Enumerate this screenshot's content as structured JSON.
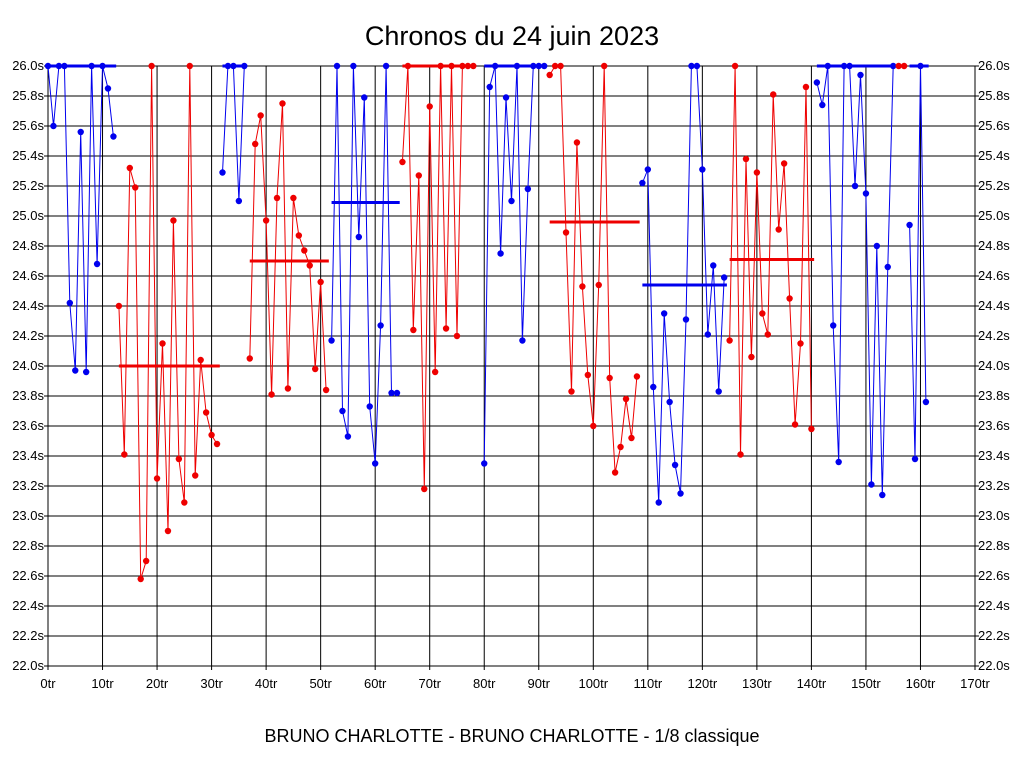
{
  "chart_data": {
    "type": "line",
    "title": "Chronos du 24 juin 2023",
    "subtitle": "BRUNO CHARLOTTE - BRUNO CHARLOTTE - 1/8 classique",
    "xlim": [
      0,
      170
    ],
    "ylim": [
      22.0,
      26.0
    ],
    "x_ticks": [
      0,
      10,
      20,
      30,
      40,
      50,
      60,
      70,
      80,
      90,
      100,
      110,
      120,
      130,
      140,
      150,
      160,
      170
    ],
    "x_tick_labels": [
      "0tr",
      "10tr",
      "20tr",
      "30tr",
      "40tr",
      "50tr",
      "60tr",
      "70tr",
      "80tr",
      "90tr",
      "100tr",
      "110tr",
      "120tr",
      "130tr",
      "140tr",
      "150tr",
      "160tr",
      "170tr"
    ],
    "y_ticks": [
      22.0,
      22.2,
      22.4,
      22.6,
      22.8,
      23.0,
      23.2,
      23.4,
      23.6,
      23.8,
      24.0,
      24.2,
      24.4,
      24.6,
      24.8,
      25.0,
      25.2,
      25.4,
      25.6,
      25.8,
      26.0
    ],
    "y_tick_labels": [
      "22.0s",
      "22.2s",
      "22.4s",
      "22.6s",
      "22.8s",
      "23.0s",
      "23.2s",
      "23.4s",
      "23.6s",
      "23.8s",
      "24.0s",
      "24.2s",
      "24.4s",
      "24.6s",
      "24.8s",
      "25.0s",
      "25.2s",
      "25.4s",
      "25.6s",
      "25.8s",
      "26.0s"
    ],
    "grid": true,
    "colors": {
      "blue": "#0000ee",
      "red": "#ee0000"
    },
    "segments": [
      {
        "color": "blue",
        "points": [
          [
            0,
            26.0
          ],
          [
            1,
            25.6
          ],
          [
            2,
            26.0
          ],
          [
            3,
            26.0
          ],
          [
            4,
            24.42
          ],
          [
            5,
            23.97
          ],
          [
            6,
            25.56
          ],
          [
            7,
            23.96
          ],
          [
            8,
            26.0
          ],
          [
            9,
            24.68
          ],
          [
            10,
            26.0
          ],
          [
            11,
            25.85
          ],
          [
            12,
            25.53
          ]
        ],
        "avg": 26.0,
        "avg_range": [
          0,
          12
        ]
      },
      {
        "color": "red",
        "points": [
          [
            13,
            24.4
          ],
          [
            14,
            23.41
          ],
          [
            15,
            25.32
          ],
          [
            16,
            25.19
          ],
          [
            17,
            22.58
          ],
          [
            18,
            22.7
          ],
          [
            19,
            26.0
          ],
          [
            20,
            23.25
          ],
          [
            21,
            24.15
          ],
          [
            22,
            22.9
          ],
          [
            23,
            24.97
          ],
          [
            24,
            23.38
          ],
          [
            25,
            23.09
          ],
          [
            26,
            26.0
          ],
          [
            27,
            23.27
          ],
          [
            28,
            24.04
          ],
          [
            29,
            23.69
          ],
          [
            30,
            23.54
          ],
          [
            31,
            23.48
          ]
        ],
        "avg": 24.0,
        "avg_range": [
          13,
          31
        ]
      },
      {
        "color": "blue",
        "points": [
          [
            32,
            25.29
          ],
          [
            33,
            26.0
          ],
          [
            34,
            26.0
          ],
          [
            35,
            25.1
          ],
          [
            36,
            26.0
          ]
        ],
        "avg": 26.0,
        "avg_range": [
          32,
          36
        ]
      },
      {
        "color": "red",
        "points": [
          [
            37,
            24.05
          ],
          [
            38,
            25.48
          ],
          [
            39,
            25.67
          ],
          [
            40,
            24.97
          ],
          [
            41,
            23.81
          ],
          [
            42,
            25.12
          ],
          [
            43,
            25.75
          ],
          [
            44,
            23.85
          ],
          [
            45,
            25.12
          ],
          [
            46,
            24.87
          ],
          [
            47,
            24.77
          ],
          [
            48,
            24.67
          ],
          [
            49,
            23.98
          ],
          [
            50,
            24.56
          ],
          [
            51,
            23.84
          ]
        ],
        "avg": 24.7,
        "avg_range": [
          37,
          51
        ]
      },
      {
        "color": "blue",
        "points": [
          [
            52,
            24.17
          ],
          [
            53,
            26.0
          ],
          [
            54,
            23.7
          ],
          [
            55,
            23.53
          ],
          [
            56,
            26.0
          ],
          [
            57,
            24.86
          ],
          [
            58,
            25.79
          ],
          [
            59,
            23.73
          ],
          [
            60,
            23.35
          ],
          [
            61,
            24.27
          ],
          [
            62,
            26.0
          ],
          [
            63,
            23.82
          ],
          [
            64,
            23.82
          ]
        ],
        "avg": 25.09,
        "avg_range": [
          52,
          64
        ]
      },
      {
        "color": "red",
        "points": [
          [
            65,
            25.36
          ],
          [
            66,
            26.0
          ],
          [
            67,
            24.24
          ],
          [
            68,
            25.27
          ],
          [
            69,
            23.18
          ],
          [
            70,
            25.73
          ],
          [
            71,
            23.96
          ],
          [
            72,
            26.0
          ],
          [
            73,
            24.25
          ],
          [
            74,
            26.0
          ],
          [
            75,
            24.2
          ],
          [
            76,
            26.0
          ],
          [
            77,
            26.0
          ],
          [
            78,
            26.0
          ]
        ],
        "avg": 26.0,
        "avg_range": [
          65,
          78
        ]
      },
      {
        "color": "blue",
        "points": [
          [
            80,
            23.35
          ],
          [
            81,
            25.86
          ],
          [
            82,
            26.0
          ],
          [
            83,
            24.75
          ],
          [
            84,
            25.79
          ],
          [
            85,
            25.1
          ],
          [
            86,
            26.0
          ],
          [
            87,
            24.17
          ],
          [
            88,
            25.18
          ],
          [
            89,
            26.0
          ],
          [
            90,
            26.0
          ],
          [
            91,
            26.0
          ]
        ],
        "avg": 26.0,
        "avg_range": [
          80,
          91
        ]
      },
      {
        "color": "red",
        "points": [
          [
            92,
            25.94
          ],
          [
            93,
            26.0
          ],
          [
            94,
            26.0
          ],
          [
            95,
            24.89
          ],
          [
            96,
            23.83
          ],
          [
            97,
            25.49
          ],
          [
            98,
            24.53
          ],
          [
            99,
            23.94
          ],
          [
            100,
            23.6
          ],
          [
            101,
            24.54
          ],
          [
            102,
            26.0
          ],
          [
            103,
            23.92
          ],
          [
            104,
            23.29
          ],
          [
            105,
            23.46
          ],
          [
            106,
            23.78
          ],
          [
            107,
            23.52
          ],
          [
            108,
            23.93
          ]
        ],
        "avg": 24.96,
        "avg_range": [
          92,
          108
        ]
      },
      {
        "color": "blue",
        "points": [
          [
            109,
            25.22
          ],
          [
            110,
            25.31
          ],
          [
            111,
            23.86
          ],
          [
            112,
            23.09
          ],
          [
            113,
            24.35
          ],
          [
            114,
            23.76
          ],
          [
            115,
            23.34
          ],
          [
            116,
            23.15
          ],
          [
            117,
            24.31
          ],
          [
            118,
            26.0
          ],
          [
            119,
            26.0
          ],
          [
            120,
            25.31
          ],
          [
            121,
            24.21
          ],
          [
            122,
            24.67
          ],
          [
            123,
            23.83
          ],
          [
            124,
            24.59
          ]
        ],
        "avg": 24.54,
        "avg_range": [
          109,
          124
        ]
      },
      {
        "color": "red",
        "points": [
          [
            125,
            24.17
          ],
          [
            126,
            26.0
          ],
          [
            127,
            23.41
          ],
          [
            128,
            25.38
          ],
          [
            129,
            24.06
          ],
          [
            130,
            25.29
          ],
          [
            131,
            24.35
          ],
          [
            132,
            24.21
          ],
          [
            133,
            25.81
          ],
          [
            134,
            24.91
          ],
          [
            135,
            25.35
          ],
          [
            136,
            24.45
          ],
          [
            137,
            23.61
          ],
          [
            138,
            24.15
          ],
          [
            139,
            25.86
          ],
          [
            140,
            23.58
          ]
        ],
        "avg": 24.71,
        "avg_range": [
          125,
          140
        ]
      },
      {
        "color": "blue",
        "points": [
          [
            141,
            25.89
          ],
          [
            142,
            25.74
          ],
          [
            143,
            26.0
          ],
          [
            144,
            24.27
          ],
          [
            145,
            23.36
          ],
          [
            146,
            26.0
          ],
          [
            147,
            26.0
          ],
          [
            148,
            25.2
          ],
          [
            149,
            25.94
          ],
          [
            150,
            25.15
          ],
          [
            151,
            23.21
          ],
          [
            152,
            24.8
          ],
          [
            153,
            23.14
          ],
          [
            154,
            24.66
          ],
          [
            155,
            26.0
          ]
        ],
        "avg": 26.0,
        "avg_range": [
          141,
          155
        ]
      },
      {
        "color": "red",
        "points": [
          [
            156,
            26.0
          ],
          [
            157,
            26.0
          ]
        ],
        "avg": 26.0,
        "avg_range": [
          156,
          157
        ]
      },
      {
        "color": "blue",
        "points": [
          [
            158,
            24.94
          ],
          [
            159,
            23.38
          ],
          [
            160,
            26.0
          ],
          [
            161,
            23.76
          ]
        ],
        "avg": 26.0,
        "avg_range": [
          158,
          161
        ]
      }
    ]
  }
}
